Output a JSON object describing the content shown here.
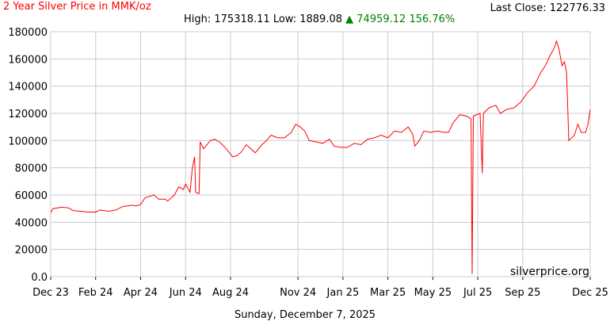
{
  "header": {
    "title": "2 Year Silver Price in MMK/oz",
    "last_close": "Last Close: 122776.33",
    "high": "High: 175318.11",
    "low": "Low: 1889.08",
    "change": "▲ 74959.12 156.76%"
  },
  "footer": {
    "date": "Sunday, December 7, 2025"
  },
  "watermark": "silverprice.org",
  "colors": {
    "line": "#ff0000",
    "title": "#ff0000",
    "change": "#008000",
    "grid": "#cccccc"
  },
  "chart_data": {
    "type": "line",
    "title": "2 Year Silver Price in MMK/oz",
    "xlabel": "",
    "ylabel": "",
    "ylim": [
      0,
      180000
    ],
    "xlim": [
      0,
      24
    ],
    "grid": true,
    "legend": "none",
    "y_ticks": [
      "0.0",
      "20000",
      "40000",
      "60000",
      "80000",
      "100000",
      "120000",
      "140000",
      "160000",
      "180000"
    ],
    "x_ticks": [
      {
        "label": "Dec 23",
        "x": 0
      },
      {
        "label": "Feb 24",
        "x": 2
      },
      {
        "label": "Apr 24",
        "x": 4
      },
      {
        "label": "Jun 24",
        "x": 6
      },
      {
        "label": "Aug 24",
        "x": 8
      },
      {
        "label": "Nov 24",
        "x": 11
      },
      {
        "label": "Jan 25",
        "x": 13
      },
      {
        "label": "Mar 25",
        "x": 15
      },
      {
        "label": "May 25",
        "x": 17
      },
      {
        "label": "Jul 25",
        "x": 19
      },
      {
        "label": "Sep 25",
        "x": 21
      },
      {
        "label": "Dec 25",
        "x": 24
      }
    ],
    "series": [
      {
        "values": [
          [
            0,
            47000
          ],
          [
            0.1,
            50000
          ],
          [
            0.5,
            51000
          ],
          [
            0.8,
            50500
          ],
          [
            1.0,
            48500
          ],
          [
            1.4,
            48000
          ],
          [
            1.6,
            47500
          ],
          [
            2.0,
            47500
          ],
          [
            2.2,
            49000
          ],
          [
            2.6,
            48000
          ],
          [
            2.9,
            49000
          ],
          [
            3.2,
            51500
          ],
          [
            3.6,
            52500
          ],
          [
            3.8,
            52000
          ],
          [
            4.0,
            53000
          ],
          [
            4.2,
            58000
          ],
          [
            4.6,
            60000
          ],
          [
            4.8,
            57000
          ],
          [
            5.1,
            57000
          ],
          [
            5.2,
            55500
          ],
          [
            5.5,
            60000
          ],
          [
            5.7,
            66000
          ],
          [
            5.9,
            64000
          ],
          [
            6.0,
            68000
          ],
          [
            6.2,
            62000
          ],
          [
            6.3,
            80000
          ],
          [
            6.4,
            88000
          ],
          [
            6.45,
            62000
          ],
          [
            6.6,
            61000
          ],
          [
            6.65,
            99000
          ],
          [
            6.8,
            94000
          ],
          [
            6.9,
            96000
          ],
          [
            7.1,
            100000
          ],
          [
            7.3,
            101000
          ],
          [
            7.5,
            99000
          ],
          [
            7.7,
            96000
          ],
          [
            7.9,
            92000
          ],
          [
            8.1,
            88000
          ],
          [
            8.3,
            89000
          ],
          [
            8.5,
            92000
          ],
          [
            8.7,
            97000
          ],
          [
            8.9,
            94000
          ],
          [
            9.1,
            91000
          ],
          [
            9.4,
            97000
          ],
          [
            9.6,
            100000
          ],
          [
            9.8,
            104000
          ],
          [
            10.1,
            102000
          ],
          [
            10.4,
            102000
          ],
          [
            10.7,
            106000
          ],
          [
            10.9,
            112000
          ],
          [
            11.1,
            110000
          ],
          [
            11.3,
            107000
          ],
          [
            11.5,
            100000
          ],
          [
            11.8,
            99000
          ],
          [
            12.1,
            98000
          ],
          [
            12.4,
            101000
          ],
          [
            12.6,
            96000
          ],
          [
            12.9,
            95000
          ],
          [
            13.2,
            95000
          ],
          [
            13.5,
            98000
          ],
          [
            13.8,
            97000
          ],
          [
            14.1,
            101000
          ],
          [
            14.4,
            102000
          ],
          [
            14.7,
            104000
          ],
          [
            15.0,
            102000
          ],
          [
            15.3,
            107000
          ],
          [
            15.6,
            106000
          ],
          [
            15.9,
            110000
          ],
          [
            16.1,
            105000
          ],
          [
            16.2,
            96000
          ],
          [
            16.4,
            100000
          ],
          [
            16.6,
            107000
          ],
          [
            16.9,
            106000
          ],
          [
            17.2,
            107000
          ],
          [
            17.5,
            106000
          ],
          [
            17.7,
            106000
          ],
          [
            17.9,
            113000
          ],
          [
            18.2,
            119000
          ],
          [
            18.5,
            118000
          ],
          [
            18.7,
            116000
          ],
          [
            18.75,
            2000
          ],
          [
            18.8,
            118000
          ],
          [
            19.1,
            120000
          ],
          [
            19.2,
            76000
          ],
          [
            19.25,
            120000
          ],
          [
            19.5,
            124000
          ],
          [
            19.8,
            126000
          ],
          [
            20.0,
            120000
          ],
          [
            20.3,
            123000
          ],
          [
            20.6,
            124000
          ],
          [
            20.9,
            128000
          ],
          [
            21.2,
            135000
          ],
          [
            21.5,
            140000
          ],
          [
            21.8,
            150000
          ],
          [
            22.0,
            155000
          ],
          [
            22.2,
            162000
          ],
          [
            22.4,
            168000
          ],
          [
            22.5,
            173000
          ],
          [
            22.6,
            168000
          ],
          [
            22.75,
            155000
          ],
          [
            22.85,
            158000
          ],
          [
            22.95,
            150000
          ],
          [
            23.05,
            100000
          ],
          [
            23.3,
            104000
          ],
          [
            23.45,
            112000
          ],
          [
            23.6,
            106000
          ],
          [
            23.8,
            106000
          ],
          [
            23.9,
            112000
          ],
          [
            24.0,
            122776
          ]
        ]
      }
    ]
  }
}
